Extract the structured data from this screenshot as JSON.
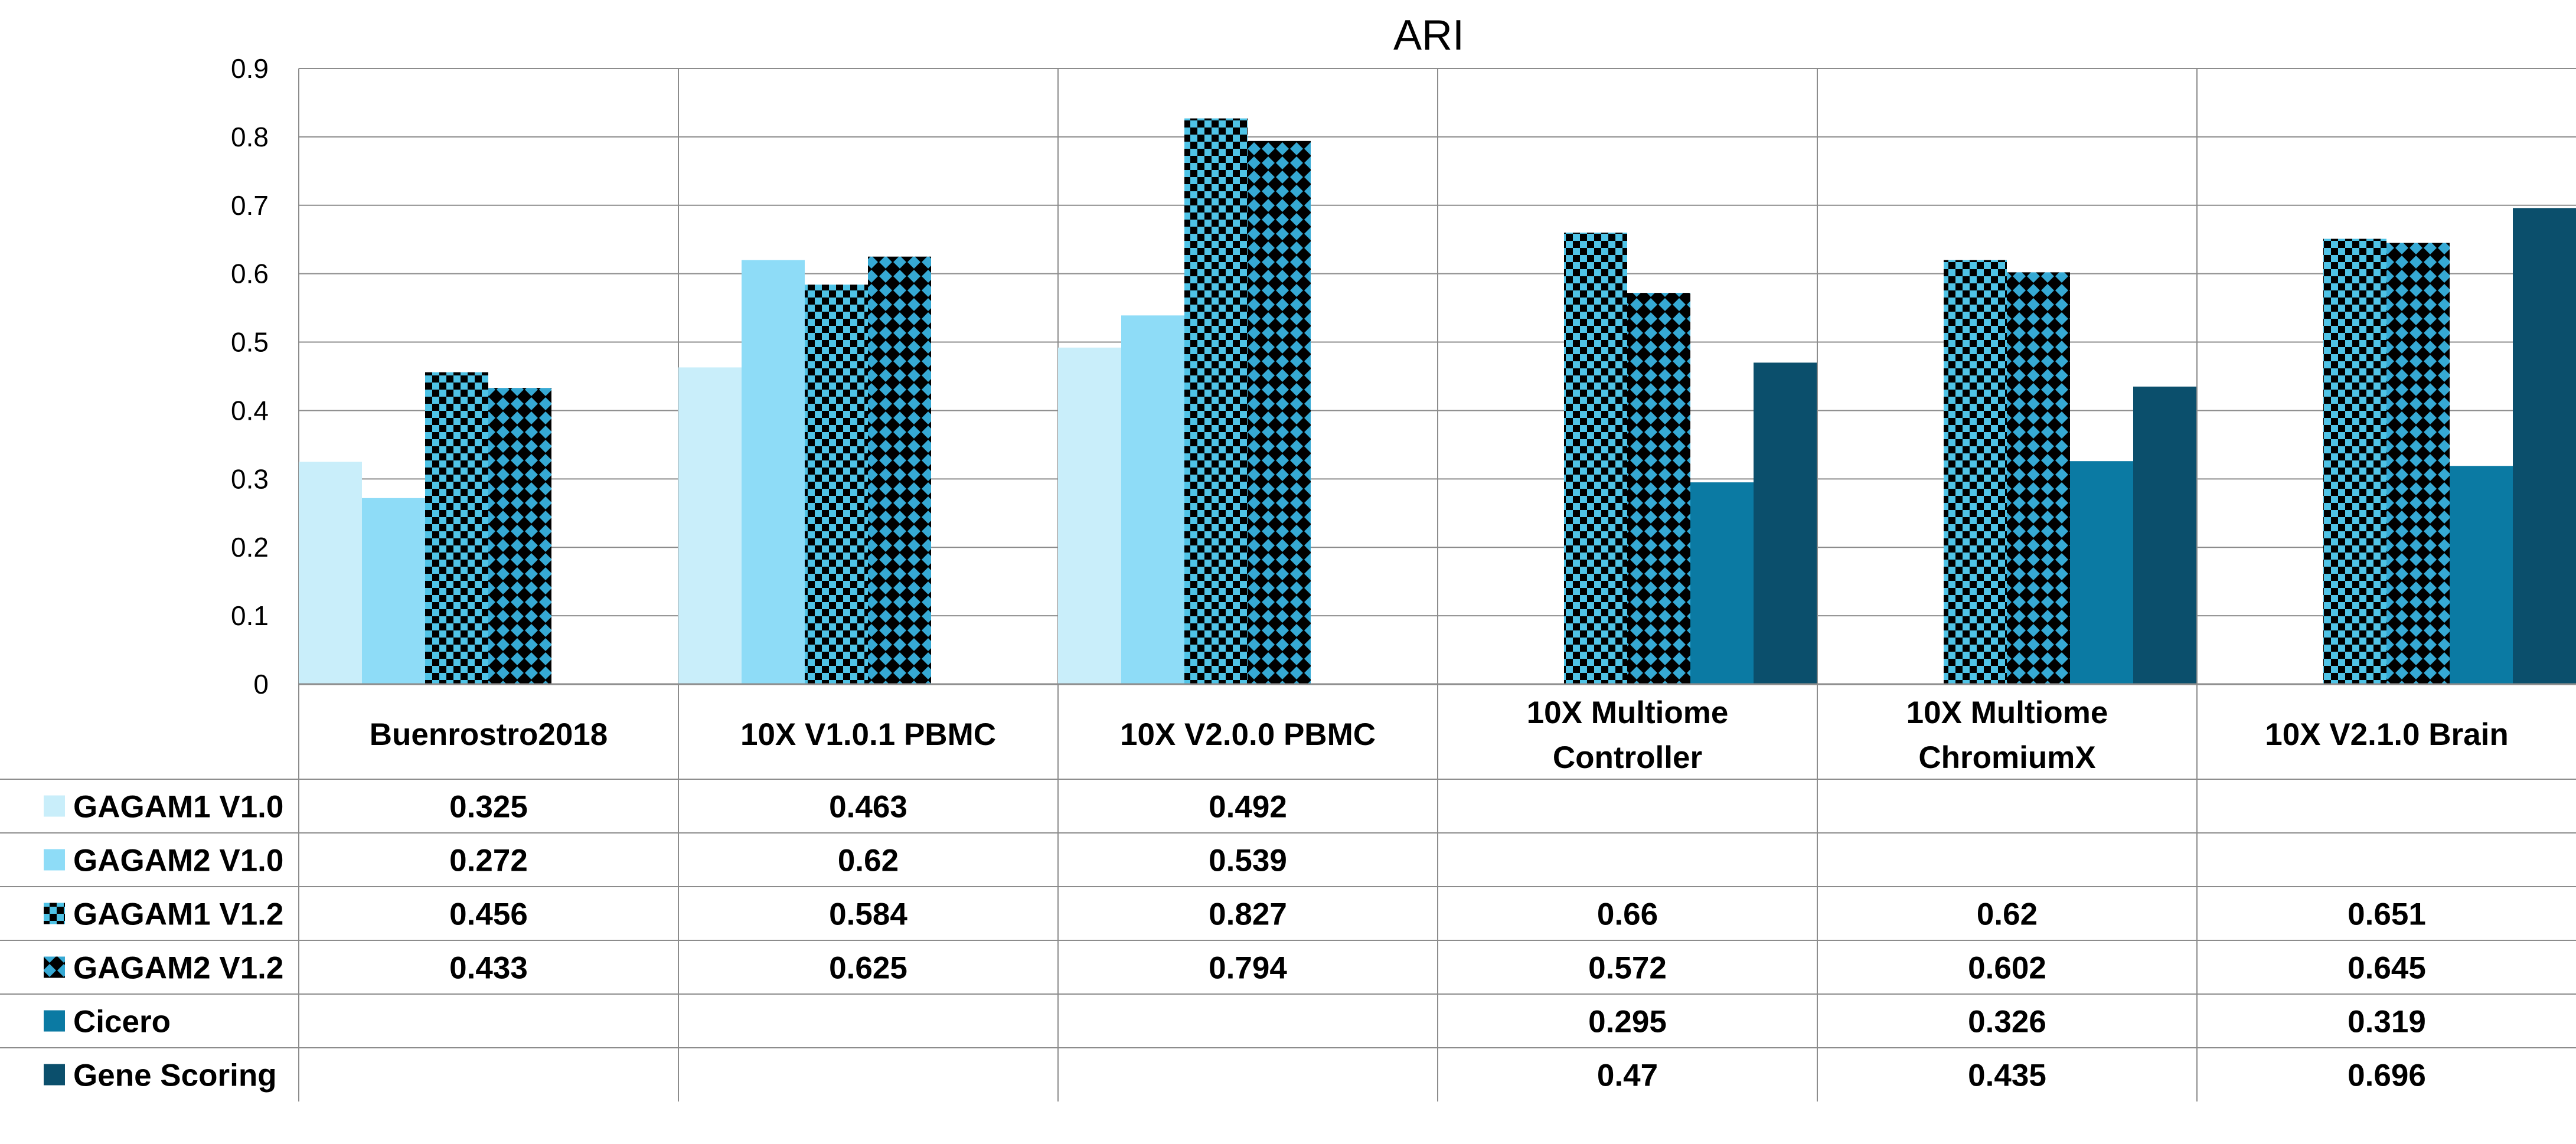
{
  "chart_data": {
    "type": "bar",
    "title": "ARI",
    "xlabel": "",
    "ylabel": "",
    "ylim": [
      0,
      0.9
    ],
    "y_ticks": [
      "0",
      "0.1",
      "0.2",
      "0.3",
      "0.4",
      "0.5",
      "0.6",
      "0.7",
      "0.8",
      "0.9"
    ],
    "grid": true,
    "legend_placement": "bottom-left (data table)",
    "categories": [
      [
        "Buenrostro2018"
      ],
      [
        "10X V1.0.1 PBMC"
      ],
      [
        "10X V2.0.0 PBMC"
      ],
      [
        "10X Multiome",
        "Controller"
      ],
      [
        "10X Multiome",
        "ChromiumX"
      ],
      [
        "10X V2.1.0 Brain"
      ]
    ],
    "series": [
      {
        "name": "GAGAM1 V1.0",
        "color": "#c9eefa",
        "pattern": "solid",
        "values": [
          0.325,
          0.463,
          0.492,
          null,
          null,
          null
        ],
        "labels": [
          "0.325",
          "0.463",
          "0.492",
          "",
          "",
          ""
        ]
      },
      {
        "name": "GAGAM2 V1.0",
        "color": "#8edcf7",
        "pattern": "solid",
        "values": [
          0.272,
          0.62,
          0.539,
          null,
          null,
          null
        ],
        "labels": [
          "0.272",
          "0.62",
          "0.539",
          "",
          "",
          ""
        ]
      },
      {
        "name": "GAGAM1 V1.2",
        "color": "#4fc3e6",
        "pattern": "checker",
        "values": [
          0.456,
          0.584,
          0.827,
          0.66,
          0.62,
          0.651
        ],
        "labels": [
          "0.456",
          "0.584",
          "0.827",
          "0.66",
          "0.62",
          "0.651"
        ]
      },
      {
        "name": "GAGAM2 V1.2",
        "color": "#36a9d4",
        "pattern": "diamond",
        "values": [
          0.433,
          0.625,
          0.794,
          0.572,
          0.602,
          0.645
        ],
        "labels": [
          "0.433",
          "0.625",
          "0.794",
          "0.572",
          "0.602",
          "0.645"
        ]
      },
      {
        "name": "Cicero",
        "color": "#0b7aa3",
        "pattern": "solid",
        "values": [
          null,
          null,
          null,
          0.295,
          0.326,
          0.319
        ],
        "labels": [
          "",
          "",
          "",
          "0.295",
          "0.326",
          "0.319"
        ]
      },
      {
        "name": "Gene Scoring",
        "color": "#0b4f6c",
        "pattern": "solid",
        "values": [
          null,
          null,
          null,
          0.47,
          0.435,
          0.696
        ],
        "labels": [
          "",
          "",
          "",
          "0.47",
          "0.435",
          "0.696"
        ]
      }
    ]
  }
}
